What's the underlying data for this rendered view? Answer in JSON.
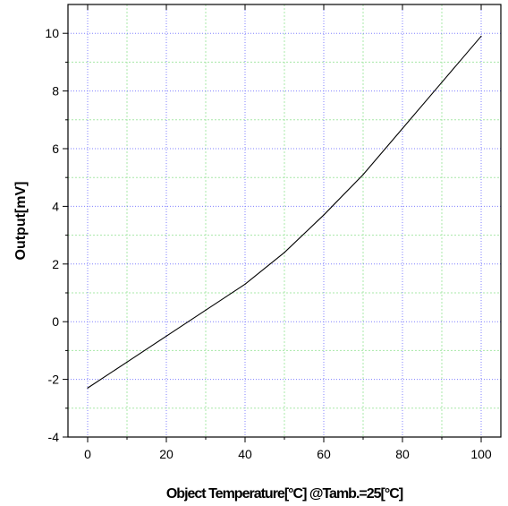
{
  "chart_data": {
    "type": "line",
    "title": "",
    "xlabel": "Object Temperature[°C] @Tamb.=25[°C]",
    "ylabel": "Output[mV]",
    "xlim": [
      -5,
      105
    ],
    "ylim": [
      -4,
      11
    ],
    "x_ticks": [
      0,
      20,
      40,
      60,
      80,
      100
    ],
    "y_ticks": [
      -4,
      -2,
      0,
      2,
      4,
      6,
      8,
      10
    ],
    "x_tick_labels": [
      "0",
      "20",
      "40",
      "60",
      "80",
      "100"
    ],
    "y_tick_labels": [
      "-4",
      "-2",
      "0",
      "2",
      "4",
      "6",
      "8",
      "10"
    ],
    "grid": {
      "major": true,
      "minor": true,
      "major_color": "#8080ff",
      "minor_color": "#a8e8a8"
    },
    "series": [
      {
        "color": "#000000",
        "x": [
          0,
          10,
          20,
          30,
          40,
          50,
          60,
          70,
          80,
          90,
          100
        ],
        "values": [
          -2.3,
          -1.4,
          -0.5,
          0.4,
          1.3,
          2.4,
          3.7,
          5.1,
          6.7,
          8.3,
          9.9
        ]
      }
    ]
  }
}
